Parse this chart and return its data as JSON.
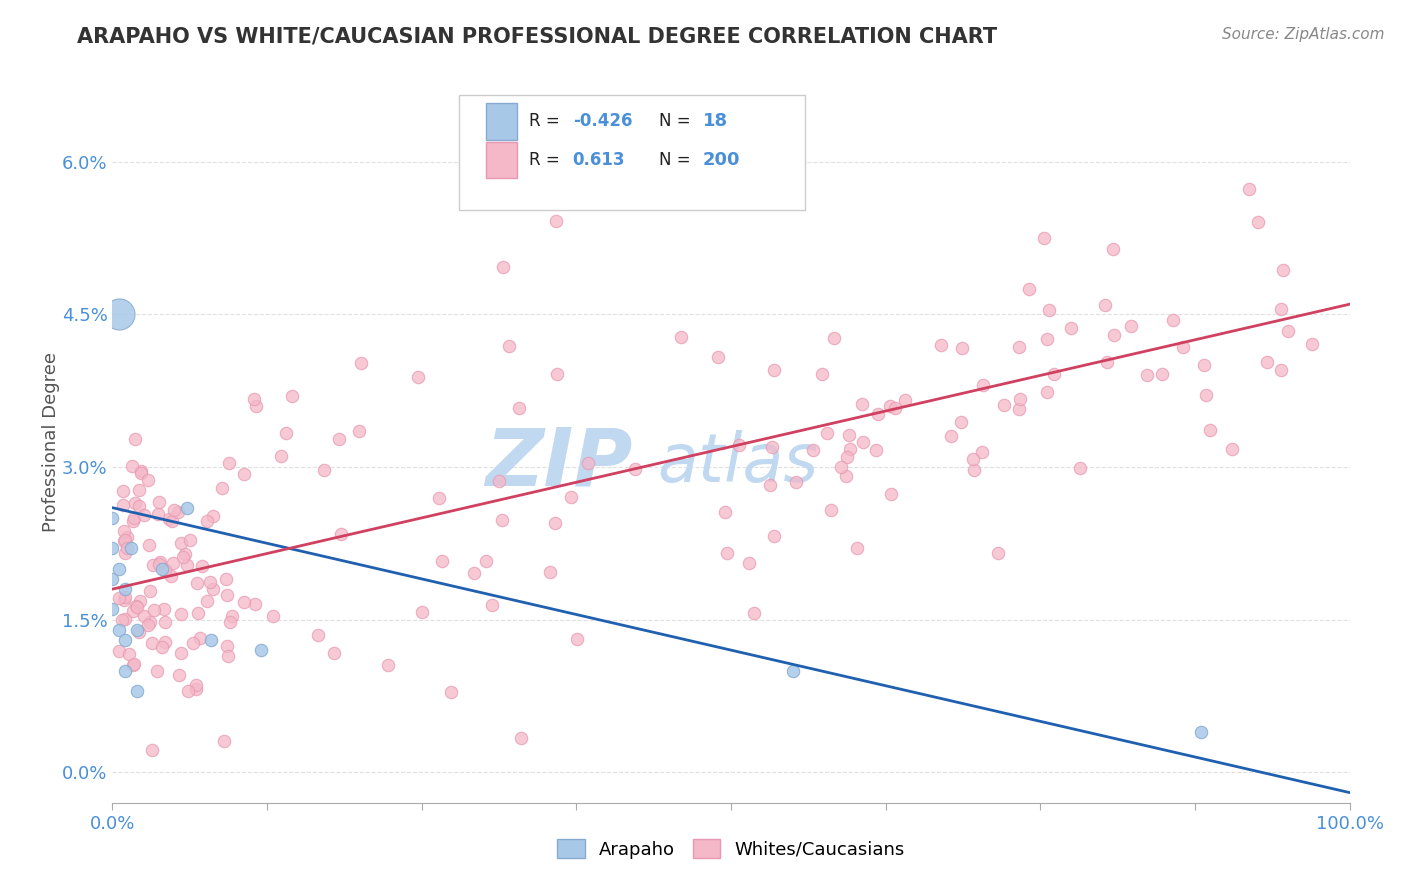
{
  "title": "ARAPAHO VS WHITE/CAUCASIAN PROFESSIONAL DEGREE CORRELATION CHART",
  "source_text": "Source: ZipAtlas.com",
  "ylabel": "Professional Degree",
  "xlim": [
    0.0,
    1.0
  ],
  "ylim": [
    -0.003,
    0.068
  ],
  "yticks": [
    0.0,
    0.015,
    0.03,
    0.045,
    0.06
  ],
  "ytick_labels": [
    "0.0%",
    "1.5%",
    "3.0%",
    "4.5%",
    "6.0%"
  ],
  "xticks": [
    0.0,
    0.125,
    0.25,
    0.375,
    0.5,
    0.625,
    0.75,
    0.875,
    1.0
  ],
  "xtick_labels": [
    "0.0%",
    "",
    "",
    "",
    "",
    "",
    "",
    "",
    "100.0%"
  ],
  "legend_R_arapaho": "-0.426",
  "legend_N_arapaho": "18",
  "legend_R_white": "0.613",
  "legend_N_white": "200",
  "arapaho_color": "#a8c8e8",
  "white_color": "#f4b8c8",
  "line_arapaho_color": "#2060b0",
  "line_white_color": "#d04060",
  "watermark_zip_color": "#c0d8f0",
  "watermark_atlas_color": "#c0d8f0",
  "background_color": "#ffffff",
  "grid_color": "#dddddd",
  "title_color": "#333333",
  "tick_color": "#4a90d9",
  "source_color": "#888888",
  "legend_box_color": "#eeeeee",
  "arapaho_line_start_x": 0.0,
  "arapaho_line_start_y": 0.026,
  "arapaho_line_end_x": 1.0,
  "arapaho_line_end_y": -0.002,
  "white_line_start_x": 0.0,
  "white_line_start_y": 0.018,
  "white_line_end_x": 1.0,
  "white_line_end_y": 0.046
}
